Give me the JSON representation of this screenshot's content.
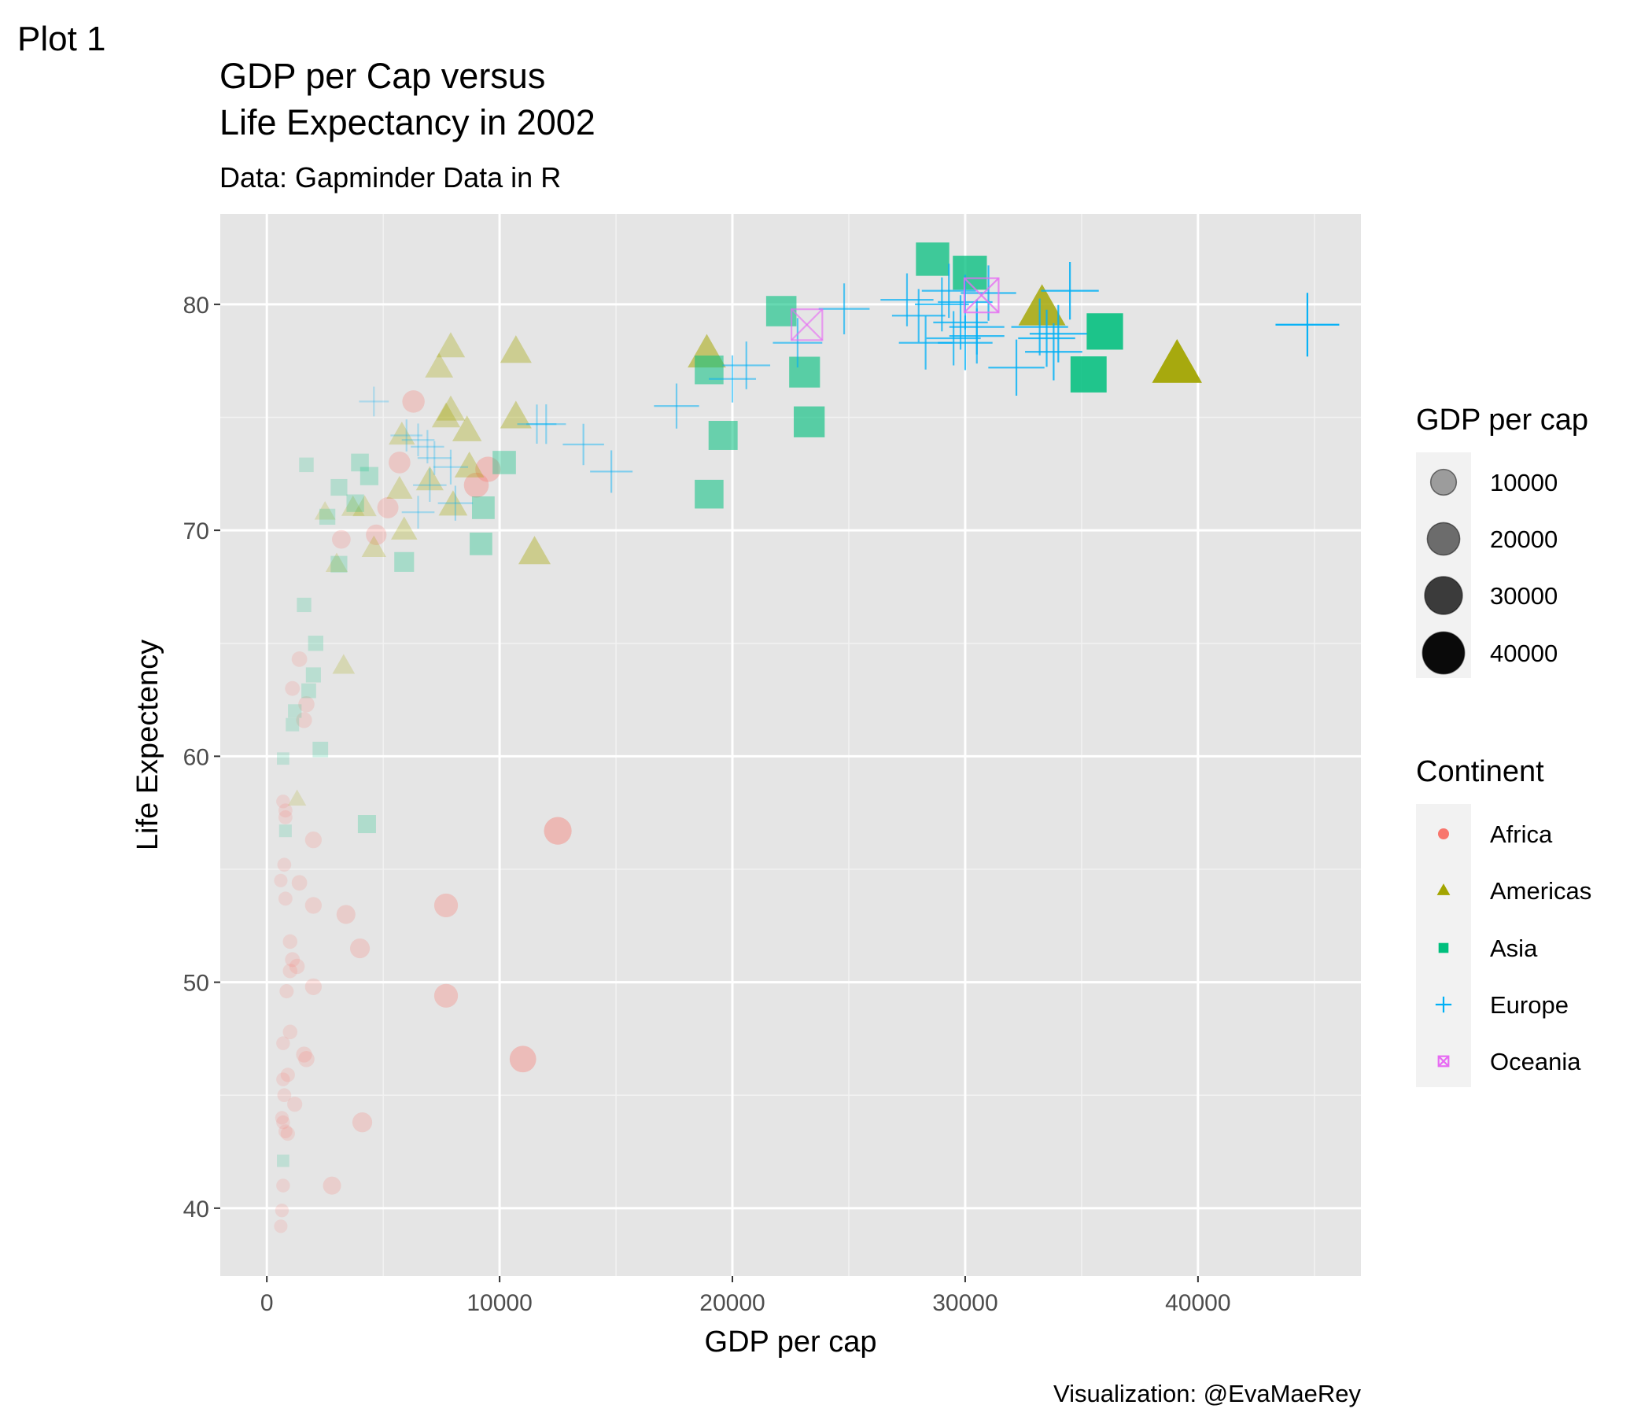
{
  "tag": "Plot 1",
  "caption": "Visualization: @EvaMaeRey",
  "chart_data": {
    "type": "scatter",
    "title": [
      "GDP per Cap versus",
      "Life Expectancy in 2002"
    ],
    "subtitle": "Data: Gapminder Data in R",
    "xlabel": "GDP per cap",
    "ylabel": "Life Expectency",
    "xlim": [
      -2000,
      47000
    ],
    "ylim": [
      37,
      84
    ],
    "x_ticks": [
      0,
      10000,
      20000,
      30000,
      40000
    ],
    "y_ticks": [
      40,
      50,
      60,
      70,
      80
    ],
    "grid": true,
    "panel_background": "#e5e5e5",
    "legend_position": "right",
    "size_legend": {
      "title": "GDP per cap",
      "breaks": [
        10000,
        20000,
        30000,
        40000
      ],
      "labels": [
        "10000",
        "20000",
        "30000",
        "40000"
      ]
    },
    "color_legend": {
      "title": "Continent",
      "entries": [
        {
          "name": "Africa",
          "color": "#F8766D",
          "shape": "circle"
        },
        {
          "name": "Americas",
          "color": "#A3A500",
          "shape": "triangle"
        },
        {
          "name": "Asia",
          "color": "#00BF7D",
          "shape": "square"
        },
        {
          "name": "Europe",
          "color": "#00B0F6",
          "shape": "plus"
        },
        {
          "name": "Oceania",
          "color": "#E76BF3",
          "shape": "square-x"
        }
      ]
    },
    "series": [
      {
        "name": "Africa",
        "points": [
          [
            600,
            39.2
          ],
          [
            650,
            39.9
          ],
          [
            700,
            41.0
          ],
          [
            900,
            43.3
          ],
          [
            800,
            43.4
          ],
          [
            700,
            43.8
          ],
          [
            650,
            44.0
          ],
          [
            1200,
            44.6
          ],
          [
            750,
            45.0
          ],
          [
            700,
            45.7
          ],
          [
            900,
            45.9
          ],
          [
            1700,
            46.6
          ],
          [
            1600,
            46.8
          ],
          [
            700,
            47.3
          ],
          [
            1000,
            47.8
          ],
          [
            850,
            49.6
          ],
          [
            2000,
            49.8
          ],
          [
            1000,
            50.5
          ],
          [
            1300,
            50.7
          ],
          [
            1100,
            51.0
          ],
          [
            1000,
            51.8
          ],
          [
            800,
            53.7
          ],
          [
            2000,
            53.4
          ],
          [
            1400,
            54.4
          ],
          [
            600,
            54.5
          ],
          [
            750,
            55.2
          ],
          [
            2000,
            56.3
          ],
          [
            800,
            57.3
          ],
          [
            800,
            57.6
          ],
          [
            700,
            58.0
          ],
          [
            1600,
            61.6
          ],
          [
            1700,
            62.3
          ],
          [
            1100,
            63.0
          ],
          [
            1400,
            64.3
          ],
          [
            2800,
            41.0
          ],
          [
            4100,
            43.8
          ],
          [
            4000,
            51.5
          ],
          [
            3400,
            53.0
          ],
          [
            11000,
            46.6
          ],
          [
            7700,
            49.4
          ],
          [
            7700,
            53.4
          ],
          [
            12500,
            56.7
          ],
          [
            3200,
            69.6
          ],
          [
            4700,
            69.8
          ],
          [
            5200,
            71.0
          ],
          [
            9000,
            72.0
          ],
          [
            9500,
            72.7
          ],
          [
            5700,
            73.0
          ],
          [
            6300,
            75.7
          ]
        ]
      },
      {
        "name": "Americas",
        "points": [
          [
            1300,
            58.1
          ],
          [
            3300,
            64.0
          ],
          [
            2500,
            70.8
          ],
          [
            3000,
            68.5
          ],
          [
            3700,
            71.0
          ],
          [
            4200,
            71.0
          ],
          [
            4600,
            69.2
          ],
          [
            5700,
            71.8
          ],
          [
            5900,
            70.0
          ],
          [
            5800,
            74.2
          ],
          [
            7000,
            72.2
          ],
          [
            8000,
            71.1
          ],
          [
            8700,
            72.8
          ],
          [
            8600,
            74.4
          ],
          [
            7700,
            75.0
          ],
          [
            7900,
            75.3
          ],
          [
            7400,
            77.2
          ],
          [
            7900,
            78.1
          ],
          [
            10700,
            75.0
          ],
          [
            10700,
            77.9
          ],
          [
            11500,
            69.0
          ],
          [
            18900,
            77.8
          ],
          [
            33300,
            79.8
          ],
          [
            39100,
            77.3
          ]
        ]
      },
      {
        "name": "Asia",
        "points": [
          [
            700,
            42.1
          ],
          [
            800,
            56.7
          ],
          [
            4300,
            57.0
          ],
          [
            700,
            59.9
          ],
          [
            1100,
            61.4
          ],
          [
            1200,
            62.0
          ],
          [
            1800,
            62.9
          ],
          [
            2000,
            63.6
          ],
          [
            2100,
            65.0
          ],
          [
            2300,
            60.3
          ],
          [
            1600,
            66.7
          ],
          [
            1700,
            72.9
          ],
          [
            2600,
            70.6
          ],
          [
            3100,
            68.5
          ],
          [
            3100,
            71.9
          ],
          [
            3800,
            71.2
          ],
          [
            4000,
            73.0
          ],
          [
            4400,
            72.4
          ],
          [
            5900,
            68.6
          ],
          [
            9200,
            69.4
          ],
          [
            9300,
            71.0
          ],
          [
            10200,
            73.0
          ],
          [
            19000,
            71.6
          ],
          [
            19600,
            74.2
          ],
          [
            23300,
            74.8
          ],
          [
            23100,
            77.0
          ],
          [
            19000,
            77.1
          ],
          [
            22100,
            79.7
          ],
          [
            28600,
            82.0
          ],
          [
            30200,
            81.4
          ],
          [
            35300,
            76.9
          ],
          [
            36000,
            78.8
          ]
        ]
      },
      {
        "name": "Europe",
        "points": [
          [
            4600,
            75.7
          ],
          [
            6000,
            74.2
          ],
          [
            6500,
            74.0
          ],
          [
            6900,
            73.7
          ],
          [
            7000,
            72.0
          ],
          [
            7200,
            73.2
          ],
          [
            7900,
            72.8
          ],
          [
            8100,
            71.2
          ],
          [
            6500,
            70.8
          ],
          [
            11600,
            74.7
          ],
          [
            12000,
            74.7
          ],
          [
            13600,
            73.8
          ],
          [
            14800,
            72.6
          ],
          [
            17600,
            75.5
          ],
          [
            20000,
            76.7
          ],
          [
            20600,
            77.3
          ],
          [
            22800,
            78.3
          ],
          [
            24800,
            79.8
          ],
          [
            27500,
            80.2
          ],
          [
            28000,
            79.5
          ],
          [
            28300,
            78.3
          ],
          [
            29000,
            80.0
          ],
          [
            29300,
            80.6
          ],
          [
            29500,
            78.5
          ],
          [
            29800,
            79.2
          ],
          [
            30000,
            80.1
          ],
          [
            30500,
            78.6
          ],
          [
            30500,
            79.0
          ],
          [
            30000,
            78.3
          ],
          [
            31000,
            80.5
          ],
          [
            32200,
            77.2
          ],
          [
            33200,
            79.0
          ],
          [
            33500,
            78.5
          ],
          [
            33800,
            77.9
          ],
          [
            34000,
            78.7
          ],
          [
            34500,
            80.6
          ],
          [
            44700,
            79.1
          ]
        ]
      },
      {
        "name": "Oceania",
        "points": [
          [
            23200,
            79.1
          ],
          [
            30700,
            80.4
          ]
        ]
      }
    ]
  }
}
